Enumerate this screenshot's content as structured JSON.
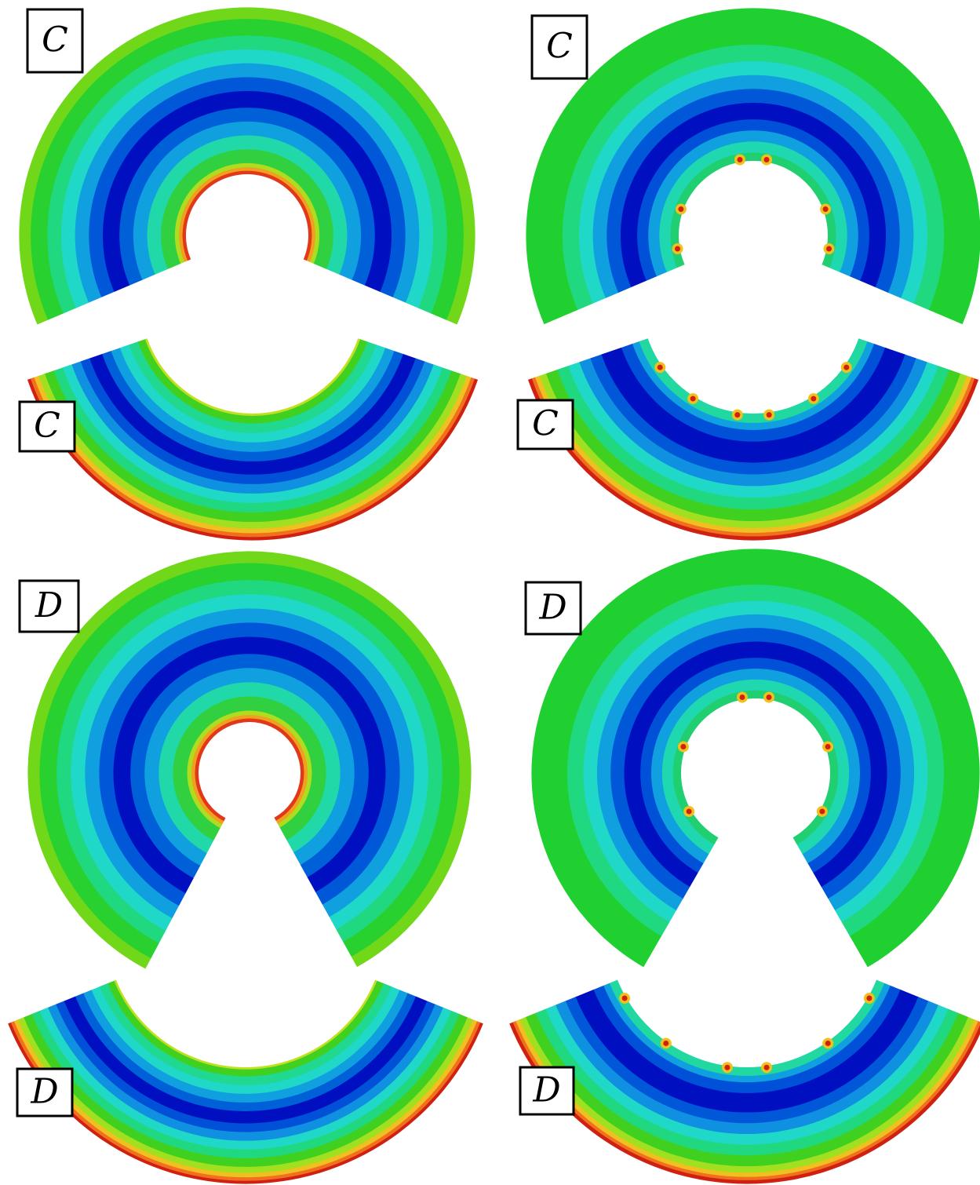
{
  "panels": [
    {
      "label": "C"
    },
    {
      "label": "C"
    },
    {
      "label": "C"
    },
    {
      "label": "C"
    },
    {
      "label": "D"
    },
    {
      "label": "D"
    },
    {
      "label": "D"
    },
    {
      "label": "D"
    }
  ]
}
